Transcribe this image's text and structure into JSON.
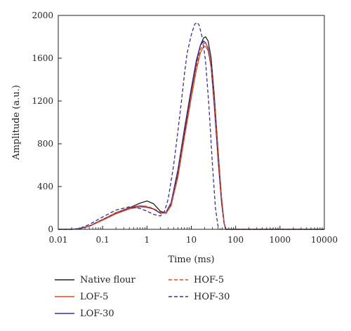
{
  "chart_data": {
    "type": "line",
    "xlabel": "Time (ms)",
    "ylabel": "Amplitude (a.u.)",
    "xscale": "log",
    "xlim": [
      0.01,
      10000
    ],
    "ylim": [
      0,
      2000
    ],
    "x_ticks": [
      0.01,
      0.1,
      1,
      10,
      100,
      1000,
      10000
    ],
    "x_tick_labels": [
      "0.01",
      "0.1",
      "1",
      "10",
      "100",
      "1000",
      "10000"
    ],
    "y_ticks": [
      0,
      400,
      800,
      1200,
      1600,
      2000
    ],
    "y_tick_labels": [
      "0",
      "400",
      "800",
      "1200",
      "1600",
      "2000"
    ],
    "grid": false,
    "legend_placement": "bottom",
    "series": [
      {
        "name": "Native flour",
        "color": "#231f20",
        "dash": "solid",
        "points": [
          [
            0.01,
            0
          ],
          [
            0.02,
            0
          ],
          [
            0.03,
            5
          ],
          [
            0.05,
            30
          ],
          [
            0.1,
            90
          ],
          [
            0.2,
            150
          ],
          [
            0.4,
            200
          ],
          [
            0.7,
            245
          ],
          [
            1,
            265
          ],
          [
            1.4,
            240
          ],
          [
            2,
            170
          ],
          [
            2.7,
            150
          ],
          [
            3.5,
            230
          ],
          [
            5,
            520
          ],
          [
            7,
            900
          ],
          [
            10,
            1290
          ],
          [
            13,
            1560
          ],
          [
            16,
            1720
          ],
          [
            19,
            1790
          ],
          [
            21,
            1800
          ],
          [
            24,
            1760
          ],
          [
            28,
            1600
          ],
          [
            33,
            1250
          ],
          [
            40,
            750
          ],
          [
            48,
            300
          ],
          [
            55,
            60
          ],
          [
            60,
            0
          ],
          [
            10000,
            0
          ]
        ]
      },
      {
        "name": "LOF-5",
        "color": "#e0481f",
        "dash": "solid",
        "points": [
          [
            0.01,
            0
          ],
          [
            0.02,
            0
          ],
          [
            0.03,
            5
          ],
          [
            0.05,
            28
          ],
          [
            0.1,
            85
          ],
          [
            0.2,
            145
          ],
          [
            0.4,
            190
          ],
          [
            0.7,
            210
          ],
          [
            1,
            205
          ],
          [
            1.4,
            190
          ],
          [
            2,
            155
          ],
          [
            2.7,
            150
          ],
          [
            3.5,
            220
          ],
          [
            5,
            490
          ],
          [
            7,
            860
          ],
          [
            10,
            1230
          ],
          [
            13,
            1490
          ],
          [
            16,
            1650
          ],
          [
            19,
            1710
          ],
          [
            21,
            1710
          ],
          [
            24,
            1670
          ],
          [
            28,
            1520
          ],
          [
            33,
            1190
          ],
          [
            40,
            720
          ],
          [
            48,
            290
          ],
          [
            55,
            60
          ],
          [
            60,
            0
          ],
          [
            10000,
            0
          ]
        ]
      },
      {
        "name": "LOF-30",
        "color": "#3a2f96",
        "dash": "solid",
        "points": [
          [
            0.01,
            0
          ],
          [
            0.02,
            0
          ],
          [
            0.03,
            5
          ],
          [
            0.05,
            30
          ],
          [
            0.1,
            92
          ],
          [
            0.2,
            155
          ],
          [
            0.4,
            200
          ],
          [
            0.7,
            220
          ],
          [
            1,
            210
          ],
          [
            1.4,
            190
          ],
          [
            2,
            150
          ],
          [
            2.7,
            160
          ],
          [
            3.5,
            250
          ],
          [
            5,
            560
          ],
          [
            7,
            940
          ],
          [
            10,
            1320
          ],
          [
            13,
            1580
          ],
          [
            16,
            1720
          ],
          [
            19,
            1760
          ],
          [
            21,
            1745
          ],
          [
            24,
            1690
          ],
          [
            28,
            1520
          ],
          [
            33,
            1150
          ],
          [
            40,
            660
          ],
          [
            48,
            250
          ],
          [
            55,
            50
          ],
          [
            60,
            0
          ],
          [
            10000,
            0
          ]
        ]
      },
      {
        "name": "HOF-5",
        "color": "#e0481f",
        "dash": "dashed",
        "points": [
          [
            0.01,
            0
          ],
          [
            0.02,
            0
          ],
          [
            0.03,
            5
          ],
          [
            0.05,
            30
          ],
          [
            0.1,
            90
          ],
          [
            0.2,
            155
          ],
          [
            0.4,
            205
          ],
          [
            0.7,
            220
          ],
          [
            1,
            215
          ],
          [
            1.4,
            195
          ],
          [
            2,
            160
          ],
          [
            2.7,
            155
          ],
          [
            3.5,
            230
          ],
          [
            5,
            510
          ],
          [
            7,
            880
          ],
          [
            10,
            1260
          ],
          [
            13,
            1520
          ],
          [
            16,
            1680
          ],
          [
            19,
            1740
          ],
          [
            21,
            1740
          ],
          [
            24,
            1700
          ],
          [
            28,
            1540
          ],
          [
            33,
            1200
          ],
          [
            40,
            720
          ],
          [
            48,
            290
          ],
          [
            55,
            60
          ],
          [
            60,
            0
          ],
          [
            10000,
            0
          ]
        ]
      },
      {
        "name": "HOF-30",
        "color": "#3a2f96",
        "dash": "dashed",
        "points": [
          [
            0.01,
            0
          ],
          [
            0.02,
            0
          ],
          [
            0.03,
            8
          ],
          [
            0.05,
            45
          ],
          [
            0.1,
            115
          ],
          [
            0.2,
            180
          ],
          [
            0.4,
            210
          ],
          [
            0.7,
            195
          ],
          [
            1,
            170
          ],
          [
            1.4,
            140
          ],
          [
            2,
            125
          ],
          [
            2.5,
            170
          ],
          [
            3,
            280
          ],
          [
            4,
            600
          ],
          [
            5,
            920
          ],
          [
            6,
            1200
          ],
          [
            7,
            1450
          ],
          [
            8,
            1640
          ],
          [
            10,
            1820
          ],
          [
            12,
            1920
          ],
          [
            13.5,
            1935
          ],
          [
            15,
            1910
          ],
          [
            18,
            1780
          ],
          [
            21,
            1570
          ],
          [
            25,
            1150
          ],
          [
            30,
            600
          ],
          [
            35,
            200
          ],
          [
            40,
            30
          ],
          [
            45,
            0
          ],
          [
            10000,
            0
          ]
        ]
      }
    ]
  }
}
